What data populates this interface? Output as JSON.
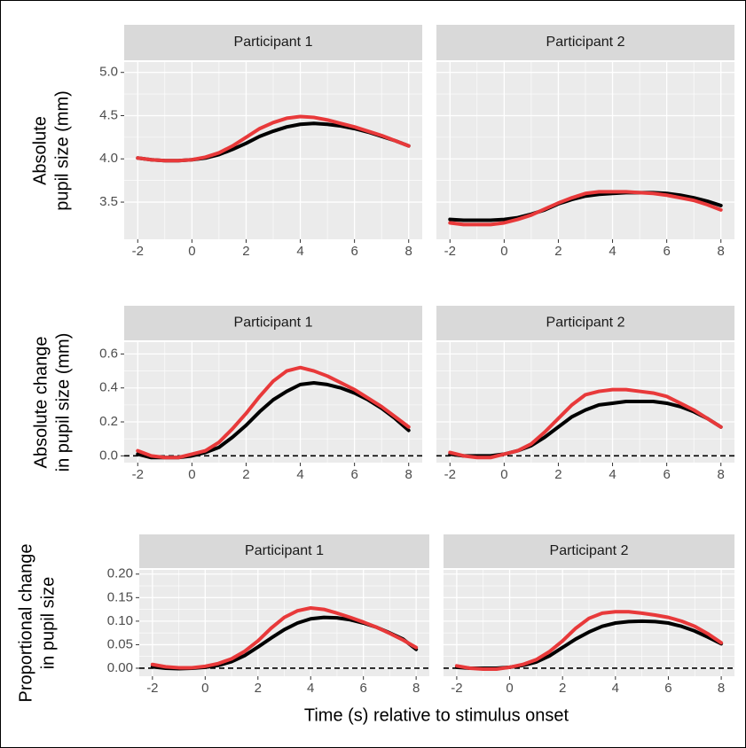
{
  "xlabel": "Time (s) relative to stimulus onset",
  "chart_data": [
    {
      "type": "line",
      "title": "Participant 1",
      "ylabel": [
        "Absolute",
        "pupil size (mm)"
      ],
      "x": [
        -2,
        -1.5,
        -1,
        -0.5,
        0,
        0.5,
        1,
        1.5,
        2,
        2.5,
        3,
        3.5,
        4,
        4.5,
        5,
        5.5,
        6,
        6.5,
        7,
        7.5,
        8
      ],
      "series": [
        {
          "color": "#000000",
          "values": [
            4.01,
            3.99,
            3.98,
            3.98,
            3.99,
            4.01,
            4.05,
            4.11,
            4.18,
            4.26,
            4.32,
            4.37,
            4.4,
            4.41,
            4.4,
            4.38,
            4.35,
            4.31,
            4.26,
            4.21,
            4.15
          ]
        },
        {
          "color": "#e8393a",
          "values": [
            4.01,
            3.99,
            3.98,
            3.98,
            3.99,
            4.02,
            4.07,
            4.15,
            4.25,
            4.35,
            4.42,
            4.47,
            4.49,
            4.48,
            4.45,
            4.41,
            4.37,
            4.32,
            4.27,
            4.21,
            4.15
          ]
        }
      ],
      "xlim": [
        -2.5,
        8.5
      ],
      "ylim": [
        3.07,
        5.12
      ],
      "xticks": [
        -2,
        0,
        2,
        4,
        6,
        8
      ],
      "yticks": [
        3.5,
        {
          "value": 4,
          "label": "4.0"
        },
        4.5,
        {
          "value": 5,
          "label": "5.0"
        }
      ],
      "grid": true
    },
    {
      "type": "line",
      "title": "Participant 2",
      "show_yticklabels": false,
      "x": [
        -2,
        -1.5,
        -1,
        -0.5,
        0,
        0.5,
        1,
        1.5,
        2,
        2.5,
        3,
        3.5,
        4,
        4.5,
        5,
        5.5,
        6,
        6.5,
        7,
        7.5,
        8
      ],
      "series": [
        {
          "color": "#000000",
          "values": [
            3.3,
            3.29,
            3.29,
            3.29,
            3.3,
            3.32,
            3.36,
            3.41,
            3.48,
            3.53,
            3.57,
            3.59,
            3.6,
            3.61,
            3.61,
            3.61,
            3.6,
            3.58,
            3.55,
            3.51,
            3.46
          ]
        },
        {
          "color": "#e8393a",
          "values": [
            3.26,
            3.24,
            3.24,
            3.24,
            3.26,
            3.3,
            3.35,
            3.42,
            3.49,
            3.55,
            3.6,
            3.62,
            3.62,
            3.62,
            3.61,
            3.6,
            3.58,
            3.55,
            3.52,
            3.47,
            3.41
          ]
        }
      ],
      "xlim": [
        -2.5,
        8.5
      ],
      "ylim": [
        3.07,
        5.12
      ],
      "xticks": [
        -2,
        0,
        2,
        4,
        6,
        8
      ],
      "yticks": [
        3.5,
        4,
        4.5,
        5
      ],
      "grid": true
    },
    {
      "type": "line",
      "title": "Participant 1",
      "ylabel": [
        "Absolute change",
        "in pupil size (mm)"
      ],
      "hline": 0,
      "x": [
        -2,
        -1.5,
        -1,
        -0.5,
        0,
        0.5,
        1,
        1.5,
        2,
        2.5,
        3,
        3.5,
        4,
        4.5,
        5,
        5.5,
        6,
        6.5,
        7,
        7.5,
        8
      ],
      "series": [
        {
          "color": "#000000",
          "values": [
            0.01,
            -0.01,
            -0.01,
            -0.01,
            0.0,
            0.02,
            0.05,
            0.11,
            0.18,
            0.26,
            0.33,
            0.38,
            0.42,
            0.43,
            0.42,
            0.4,
            0.37,
            0.33,
            0.28,
            0.22,
            0.15
          ]
        },
        {
          "color": "#e8393a",
          "values": [
            0.03,
            0.0,
            -0.01,
            -0.01,
            0.01,
            0.03,
            0.08,
            0.16,
            0.25,
            0.35,
            0.44,
            0.5,
            0.52,
            0.5,
            0.47,
            0.43,
            0.39,
            0.34,
            0.29,
            0.23,
            0.17
          ]
        }
      ],
      "xlim": [
        -2.5,
        8.5
      ],
      "ylim": [
        -0.04,
        0.67
      ],
      "xticks": [
        -2,
        0,
        2,
        4,
        6,
        8
      ],
      "yticks": [
        {
          "value": 0,
          "label": "0.0"
        },
        0.2,
        0.4,
        0.6
      ],
      "grid": true
    },
    {
      "type": "line",
      "title": "Participant 2",
      "show_yticklabels": false,
      "hline": 0,
      "x": [
        -2,
        -1.5,
        -1,
        -0.5,
        0,
        0.5,
        1,
        1.5,
        2,
        2.5,
        3,
        3.5,
        4,
        4.5,
        5,
        5.5,
        6,
        6.5,
        7,
        7.5,
        8
      ],
      "series": [
        {
          "color": "#000000",
          "values": [
            0.01,
            0.0,
            0.0,
            0.0,
            0.01,
            0.03,
            0.06,
            0.11,
            0.17,
            0.23,
            0.27,
            0.3,
            0.31,
            0.32,
            0.32,
            0.32,
            0.31,
            0.29,
            0.26,
            0.22,
            0.17
          ]
        },
        {
          "color": "#e8393a",
          "values": [
            0.02,
            0.0,
            -0.01,
            -0.01,
            0.01,
            0.03,
            0.07,
            0.14,
            0.22,
            0.3,
            0.36,
            0.38,
            0.39,
            0.39,
            0.38,
            0.37,
            0.35,
            0.31,
            0.27,
            0.22,
            0.17
          ]
        }
      ],
      "xlim": [
        -2.5,
        8.5
      ],
      "ylim": [
        -0.04,
        0.67
      ],
      "xticks": [
        -2,
        0,
        2,
        4,
        6,
        8
      ],
      "yticks": [
        0,
        0.2,
        0.4,
        0.6
      ],
      "grid": true
    },
    {
      "type": "line",
      "title": "Participant 1",
      "ylabel": [
        "Proportional change",
        "in pupil size"
      ],
      "hline": 0,
      "x": [
        -2,
        -1.5,
        -1,
        -0.5,
        0,
        0.5,
        1,
        1.5,
        2,
        2.5,
        3,
        3.5,
        4,
        4.5,
        5,
        5.5,
        6,
        6.5,
        7,
        7.5,
        8
      ],
      "series": [
        {
          "color": "#000000",
          "values": [
            0.003,
            0,
            -0.001,
            0,
            0.002,
            0.006,
            0.014,
            0.027,
            0.045,
            0.064,
            0.082,
            0.096,
            0.105,
            0.108,
            0.107,
            0.103,
            0.096,
            0.087,
            0.075,
            0.062,
            0.04
          ]
        },
        {
          "color": "#e8393a",
          "values": [
            0.008,
            0.003,
            0.001,
            0.001,
            0.004,
            0.01,
            0.02,
            0.036,
            0.058,
            0.085,
            0.108,
            0.122,
            0.128,
            0.125,
            0.117,
            0.108,
            0.098,
            0.087,
            0.074,
            0.06,
            0.044
          ]
        }
      ],
      "xlim": [
        -2.5,
        8.5
      ],
      "ylim": [
        -0.017,
        0.209
      ],
      "xticks": [
        -2,
        0,
        2,
        4,
        6,
        8
      ],
      "yticks": [
        {
          "value": 0,
          "label": "0.00"
        },
        {
          "value": 0.05,
          "label": "0.05"
        },
        {
          "value": 0.1,
          "label": "0.10"
        },
        {
          "value": 0.15,
          "label": "0.15"
        },
        {
          "value": 0.2,
          "label": "0.20"
        }
      ],
      "grid": true
    },
    {
      "type": "line",
      "title": "Participant 2",
      "show_yticklabels": false,
      "hline": 0,
      "x": [
        -2,
        -1.5,
        -1,
        -0.5,
        0,
        0.5,
        1,
        1.5,
        2,
        2.5,
        3,
        3.5,
        4,
        4.5,
        5,
        5.5,
        6,
        6.5,
        7,
        7.5,
        8
      ],
      "series": [
        {
          "color": "#000000",
          "values": [
            0.002,
            0,
            0,
            0,
            0.002,
            0.006,
            0.013,
            0.026,
            0.044,
            0.062,
            0.077,
            0.089,
            0.096,
            0.099,
            0.1,
            0.099,
            0.096,
            0.089,
            0.079,
            0.066,
            0.052
          ]
        },
        {
          "color": "#e8393a",
          "values": [
            0.005,
            0,
            -0.002,
            -0.002,
            0.002,
            0.008,
            0.018,
            0.035,
            0.058,
            0.085,
            0.106,
            0.117,
            0.12,
            0.12,
            0.117,
            0.113,
            0.108,
            0.1,
            0.089,
            0.073,
            0.054
          ]
        }
      ],
      "xlim": [
        -2.5,
        8.5
      ],
      "ylim": [
        -0.017,
        0.209
      ],
      "xticks": [
        -2,
        0,
        2,
        4,
        6,
        8
      ],
      "yticks": [
        0,
        0.05,
        0.1,
        0.15,
        0.2
      ],
      "grid": true
    }
  ]
}
